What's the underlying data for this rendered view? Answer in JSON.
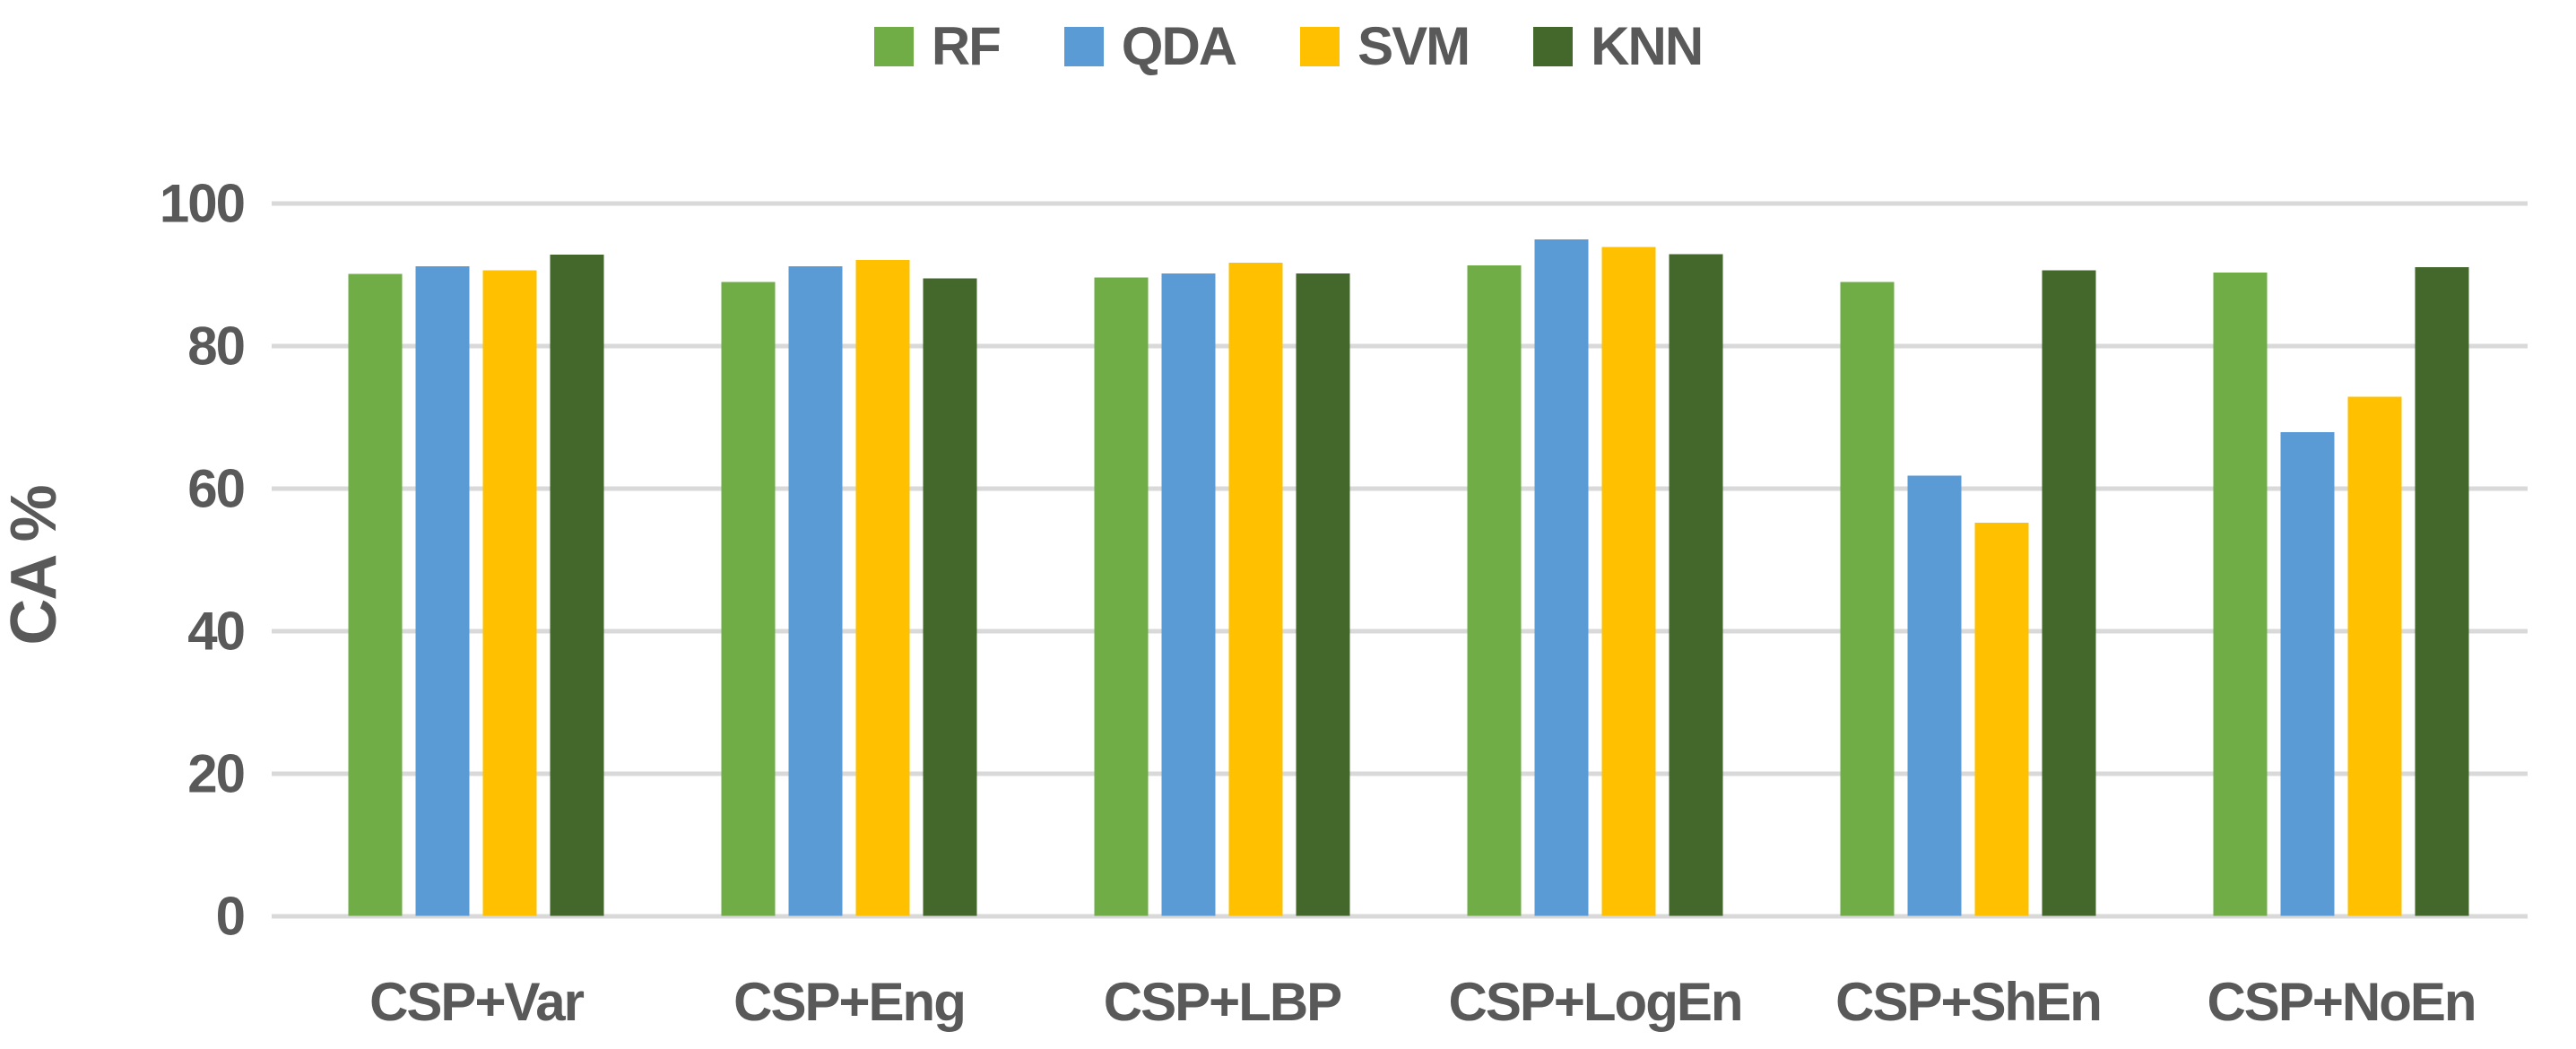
{
  "figure": {
    "background": "#ffffff",
    "text_color": "#595959",
    "gridline_color": "#d9d9d9"
  },
  "legend": {
    "position": "top-center",
    "items": [
      {
        "label": "RF",
        "color": "#70AD47"
      },
      {
        "label": "QDA",
        "color": "#5B9BD5"
      },
      {
        "label": "SVM",
        "color": "#FFC000"
      },
      {
        "label": "KNN",
        "color": "#44682C"
      }
    ]
  },
  "y_axis": {
    "title": "CA %",
    "tick_labels": [
      "0",
      "20",
      "40",
      "60",
      "80",
      "100"
    ]
  },
  "chart_data": {
    "type": "bar",
    "categories": [
      "CSP+Var",
      "CSP+Eng",
      "CSP+LBP",
      "CSP+LogEn",
      "CSP+ShEn",
      "CSP+NoEn"
    ],
    "series": [
      {
        "name": "RF",
        "color": "#70AD47",
        "values": [
          90.1,
          89.0,
          89.6,
          91.3,
          89.0,
          90.3
        ]
      },
      {
        "name": "QDA",
        "color": "#5B9BD5",
        "values": [
          91.2,
          91.2,
          90.2,
          95.0,
          61.8,
          67.9
        ]
      },
      {
        "name": "SVM",
        "color": "#FFC000",
        "values": [
          90.6,
          92.1,
          91.7,
          93.9,
          55.2,
          72.9
        ]
      },
      {
        "name": "KNN",
        "color": "#44682C",
        "values": [
          92.8,
          89.5,
          90.2,
          92.9,
          90.6,
          91.1
        ]
      }
    ],
    "xlabel": "",
    "ylabel": "CA %",
    "ylim": [
      0,
      100
    ],
    "yticks": [
      0,
      20,
      40,
      60,
      80,
      100
    ],
    "grid": true,
    "legend_position": "top"
  }
}
